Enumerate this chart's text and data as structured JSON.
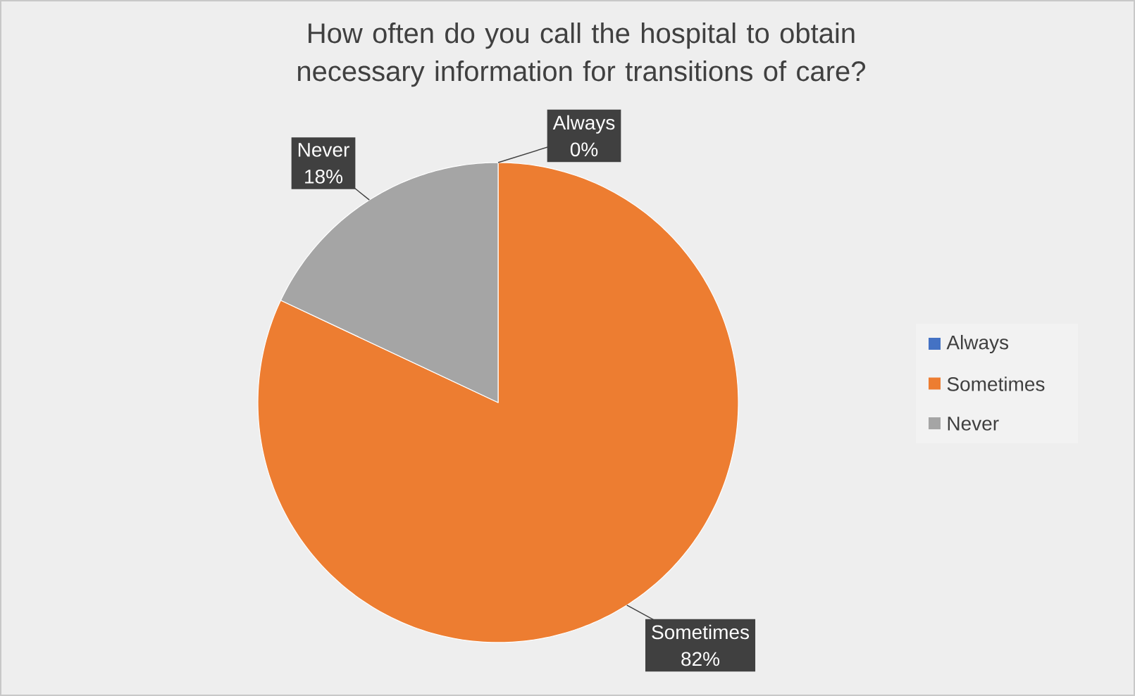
{
  "chart_data": {
    "type": "pie",
    "title": "How often do you call the hospital to obtain necessary information for transitions of care?",
    "categories": [
      "Always",
      "Sometimes",
      "Never"
    ],
    "values": [
      0,
      82,
      18
    ],
    "value_labels": [
      "0%",
      "82%",
      "18%"
    ],
    "colors": [
      "#4472c4",
      "#ed7d31",
      "#a5a5a5"
    ],
    "legend": "right"
  }
}
